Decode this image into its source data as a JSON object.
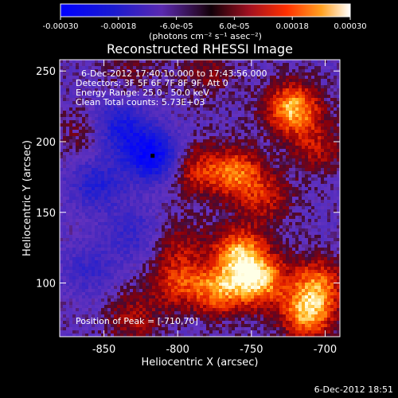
{
  "colorbar": {
    "ticks": [
      "-0.00030",
      "-0.00018",
      "-6.0e-05",
      "6.0e-05",
      "0.00018",
      "0.00030"
    ],
    "units": "(photons cm⁻² s⁻¹ asec⁻²)",
    "range": [
      -0.0003,
      0.0003
    ]
  },
  "chart_data": {
    "type": "heatmap",
    "title": "Reconstructed RHESSI Image",
    "xlabel": "Heliocentric X (arcsec)",
    "ylabel": "Heliocentric Y (arcsec)",
    "xlim": [
      -880,
      -690
    ],
    "ylim": [
      62,
      258
    ],
    "x_ticks": [
      -850,
      -800,
      -750,
      -700
    ],
    "y_ticks": [
      100,
      150,
      200,
      250
    ],
    "x_tick_labels": [
      "-850",
      "-800",
      "-750",
      "-700"
    ],
    "y_tick_labels": [
      "100",
      "150",
      "200",
      "250"
    ],
    "annotations": [
      "6-Dec-2012 17:40:10.000 to 17:43:56.000",
      "Detectors: 3F 5F 6F 7F 8F 9F, Att 0",
      "Energy Range: 25.0 - 50.0 keV",
      "Clean     Total counts: 5.73E+03"
    ],
    "peak_label": "Position of Peak = [-710,70]",
    "peak": [
      -710,
      70
    ],
    "marker": [
      -817,
      190
    ],
    "blobs": [
      {
        "x": -722,
        "y": 223,
        "value": 0.00028
      },
      {
        "x": -745,
        "y": 102,
        "value": 0.00027
      },
      {
        "x": -758,
        "y": 122,
        "value": 0.00024
      },
      {
        "x": -772,
        "y": 95,
        "value": 0.00022
      },
      {
        "x": -712,
        "y": 78,
        "value": 0.00026
      },
      {
        "x": -705,
        "y": 100,
        "value": 0.0002
      },
      {
        "x": -788,
        "y": 180,
        "value": 0.00015
      },
      {
        "x": -760,
        "y": 178,
        "value": 0.00021
      },
      {
        "x": -740,
        "y": 160,
        "value": 0.00013
      },
      {
        "x": -800,
        "y": 100,
        "value": 0.00016
      },
      {
        "x": -830,
        "y": 75,
        "value": 0.00012
      },
      {
        "x": -800,
        "y": 128,
        "value": 0.0001
      },
      {
        "x": -705,
        "y": 195,
        "value": 0.00012
      },
      {
        "x": -862,
        "y": 205,
        "value": 8e-05
      },
      {
        "x": -780,
        "y": 250,
        "value": 9e-05
      },
      {
        "x": -830,
        "y": 250,
        "value": 6e-05
      },
      {
        "x": -817,
        "y": 190,
        "value": -0.00026
      },
      {
        "x": -840,
        "y": 210,
        "value": -0.00018
      },
      {
        "x": -855,
        "y": 170,
        "value": -0.00014
      },
      {
        "x": -830,
        "y": 135,
        "value": -0.0001
      },
      {
        "x": -860,
        "y": 110,
        "value": -9e-05
      }
    ]
  },
  "timestamp": "6-Dec-2012 18:51",
  "colors": {
    "background": "#000000",
    "text": "#ffffff"
  }
}
